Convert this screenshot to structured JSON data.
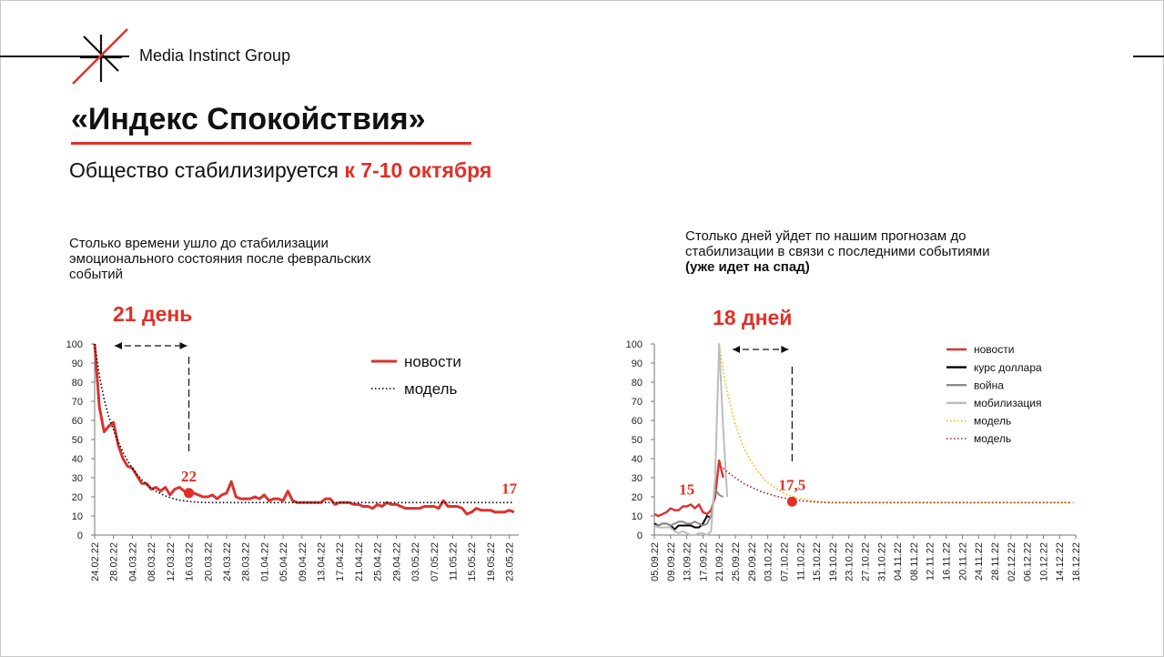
{
  "header": {
    "company": "Media Instinct Group",
    "title": "«Индекс Спокойствия»",
    "subtitle_prefix": "Общество стабилизируется ",
    "subtitle_highlight": "к 7-10 октября"
  },
  "left_panel": {
    "note": "Столько времени ушло до стабилизации эмоционального состояния после февральских событий",
    "days_label": "21 день"
  },
  "right_panel": {
    "note": "Столько дней уйдет по нашим прогнозам до стабилизации в связи с последними событиями",
    "note_bold": "(уже идет на спад)",
    "days_label": "18 дней"
  },
  "colors": {
    "accent": "#e03027",
    "news": "#d9332f",
    "dollar": "#000000",
    "war": "#8c8c8c",
    "mobilization": "#bdbdbd",
    "model_yellow": "#f2b600",
    "model_dark": "#b01b1b"
  },
  "chart_data": [
    {
      "type": "line",
      "xlabel": "",
      "ylabel": "",
      "ylim": [
        0,
        100
      ],
      "y_ticks": [
        "0",
        "10",
        "20",
        "30",
        "40",
        "50",
        "60",
        "70",
        "80",
        "90",
        "100"
      ],
      "x_ticks": [
        "24.02.22",
        "28.02.22",
        "04.03.22",
        "08.03.22",
        "12.03.22",
        "16.03.22",
        "20.03.22",
        "24.03.22",
        "28.03.22",
        "01.04.22",
        "05.04.22",
        "09.04.22",
        "13.04.22",
        "17.04.22",
        "21.04.22",
        "25.04.22",
        "29.04.22",
        "03.05.22",
        "07.05.22",
        "11.05.22",
        "15.05.22",
        "19.05.22",
        "23.05.22"
      ],
      "x_start": "24.02.22",
      "x_end": "25.05.22",
      "legend": "top-right",
      "series": [
        {
          "name": "новости",
          "style": "solid",
          "color": "#d9332f",
          "values": [
            100,
            67,
            54,
            57,
            59,
            47,
            40,
            36,
            35,
            31,
            27,
            27,
            24,
            25,
            23,
            25,
            21,
            24,
            25,
            23,
            22,
            22,
            21,
            20,
            20,
            21,
            19,
            21,
            22,
            28,
            20,
            19,
            19,
            19,
            20,
            19,
            21,
            18,
            19,
            19,
            18,
            23,
            18,
            17,
            17,
            17,
            17,
            17,
            17,
            19,
            19,
            16,
            17,
            17,
            17,
            16,
            16,
            15,
            15,
            14,
            16,
            15,
            17,
            16,
            16,
            15,
            14,
            14,
            14,
            14,
            15,
            15,
            15,
            14,
            18,
            15,
            15,
            15,
            14,
            11,
            12,
            14,
            13,
            13,
            13,
            12,
            12,
            12,
            13,
            12
          ]
        },
        {
          "name": "модель",
          "style": "dotted",
          "color": "#000000",
          "values": [
            100,
            83.4,
            71.1,
            61.9,
            55.1,
            48.8,
            43.4,
            38.9,
            35.0,
            31.7,
            28.9,
            26.5,
            24.6,
            23.0,
            21.6,
            20.5,
            19.6,
            18.9,
            18.3,
            17.9,
            17.6,
            17.4,
            17.2,
            17.1,
            17.0,
            17,
            17,
            17,
            17,
            17,
            17,
            17,
            17,
            17,
            17,
            17,
            17,
            17,
            17,
            17,
            17,
            17,
            17,
            17,
            17,
            17,
            17,
            17,
            17,
            17,
            17,
            17,
            17,
            17,
            17,
            17,
            17,
            17,
            17,
            17,
            17,
            17,
            17,
            17,
            17,
            17,
            17,
            17,
            17,
            17,
            17,
            17,
            17,
            17,
            17,
            17,
            17,
            17,
            17,
            17,
            17,
            17,
            17,
            17,
            17,
            17,
            17,
            17,
            17,
            17
          ]
        }
      ],
      "annotations": [
        {
          "label": "22",
          "x": "16.03.22",
          "y": 22
        },
        {
          "label": "17",
          "x": "23.05.22",
          "y": 17
        }
      ],
      "span": {
        "label": "21 день",
        "from": "24.02.22",
        "to": "16.03.22"
      }
    },
    {
      "type": "line",
      "xlabel": "",
      "ylabel": "",
      "ylim": [
        0,
        100
      ],
      "y_ticks": [
        "0",
        "10",
        "20",
        "30",
        "40",
        "50",
        "60",
        "70",
        "80",
        "90",
        "100"
      ],
      "x_ticks": [
        "05.09.22",
        "09.09.22",
        "13.09.22",
        "17.09.22",
        "21.09.22",
        "25.09.22",
        "29.09.22",
        "03.10.22",
        "07.10.22",
        "11.10.22",
        "15.10.22",
        "19.10.22",
        "23.10.22",
        "27.10.22",
        "31.10.22",
        "04.11.22",
        "08.11.22",
        "12.11.22",
        "16.11.22",
        "20.11.22",
        "24.11.22",
        "28.11.22",
        "02.12.22",
        "06.12.22",
        "10.12.22",
        "14.12.22",
        "18.12.22"
      ],
      "x_start": "05.09.22",
      "x_end": "18.12.22",
      "legend": "top-right",
      "series": [
        {
          "name": "новости",
          "style": "solid",
          "color": "#d9332f",
          "x_from": 0,
          "values": [
            11,
            10,
            11,
            12,
            14,
            13,
            13,
            15,
            15,
            16,
            14,
            16,
            12,
            11,
            13,
            20,
            39,
            30
          ]
        },
        {
          "name": "курс доллара",
          "style": "solid",
          "color": "#000000",
          "x_from": 0,
          "values": [
            6,
            5,
            6,
            6,
            5,
            3,
            5,
            5,
            5,
            5,
            4,
            4,
            6,
            10,
            9
          ]
        },
        {
          "name": "война",
          "style": "solid",
          "color": "#8c8c8c",
          "x_from": 0,
          "values": [
            5,
            5,
            6,
            6,
            5,
            6,
            7,
            7,
            6,
            6,
            7,
            6,
            5,
            6,
            10,
            24,
            21,
            20
          ]
        },
        {
          "name": "мобилизация",
          "style": "solid",
          "color": "#bdbdbd",
          "x_from": 0,
          "values": [
            5,
            4,
            4,
            4,
            4,
            2,
            1,
            2,
            1,
            0,
            0,
            1,
            1,
            0,
            2,
            30,
            100,
            55,
            20
          ]
        },
        {
          "name": "модель",
          "style": "dotted",
          "color": "#f2b600",
          "x_from": 16,
          "values": [
            100,
            86,
            75,
            66,
            58,
            52,
            46,
            42,
            38,
            35,
            32,
            29.5,
            27.5,
            26,
            24.5,
            23,
            22,
            21,
            20.3,
            19.6,
            19,
            18.6,
            18.2,
            17.9,
            17.7,
            17.5,
            17.3,
            17.2,
            17.1,
            17,
            17,
            17,
            17,
            17,
            17,
            17,
            17,
            17,
            17,
            17,
            17,
            17,
            17,
            17,
            17,
            17,
            17,
            17,
            17,
            17,
            17,
            17,
            17,
            17,
            17,
            17,
            17,
            17,
            17,
            17,
            17,
            17,
            17,
            17,
            17,
            17,
            17,
            17,
            17,
            17,
            17,
            17,
            17,
            17,
            17,
            17,
            17,
            17,
            17,
            17,
            17,
            17,
            17,
            17,
            17,
            17,
            17,
            17,
            17
          ]
        },
        {
          "name": "модель",
          "style": "dotted",
          "color": "#b01b1b",
          "x_from": 17,
          "values": [
            35,
            33,
            31.5,
            30,
            28.5,
            27,
            26,
            25,
            24,
            23,
            22.3,
            21.6,
            21,
            20.4,
            19.9,
            19.4,
            19,
            18.6,
            18.3,
            18,
            17.8,
            17.6,
            17.4,
            17.3,
            17.2,
            17.1,
            17,
            17,
            17,
            17,
            17,
            17,
            17,
            17,
            17,
            17,
            17,
            17,
            17,
            17,
            17,
            17,
            17,
            17,
            17,
            17,
            17,
            17,
            17,
            17,
            17,
            17,
            17,
            17,
            17,
            17,
            17,
            17,
            17,
            17,
            17,
            17,
            17,
            17,
            17,
            17,
            17,
            17,
            17,
            17,
            17,
            17,
            17,
            17,
            17,
            17,
            17,
            17,
            17,
            17,
            17,
            17,
            17,
            17,
            17,
            17,
            17
          ]
        }
      ],
      "annotations": [
        {
          "label": "15",
          "x": "13.09.22",
          "y": 15
        },
        {
          "label": "17,5",
          "x": "09.10.22",
          "y": 17.5
        }
      ],
      "span": {
        "label": "18 дней",
        "from": "21.09.22",
        "to": "09.10.22"
      }
    }
  ]
}
